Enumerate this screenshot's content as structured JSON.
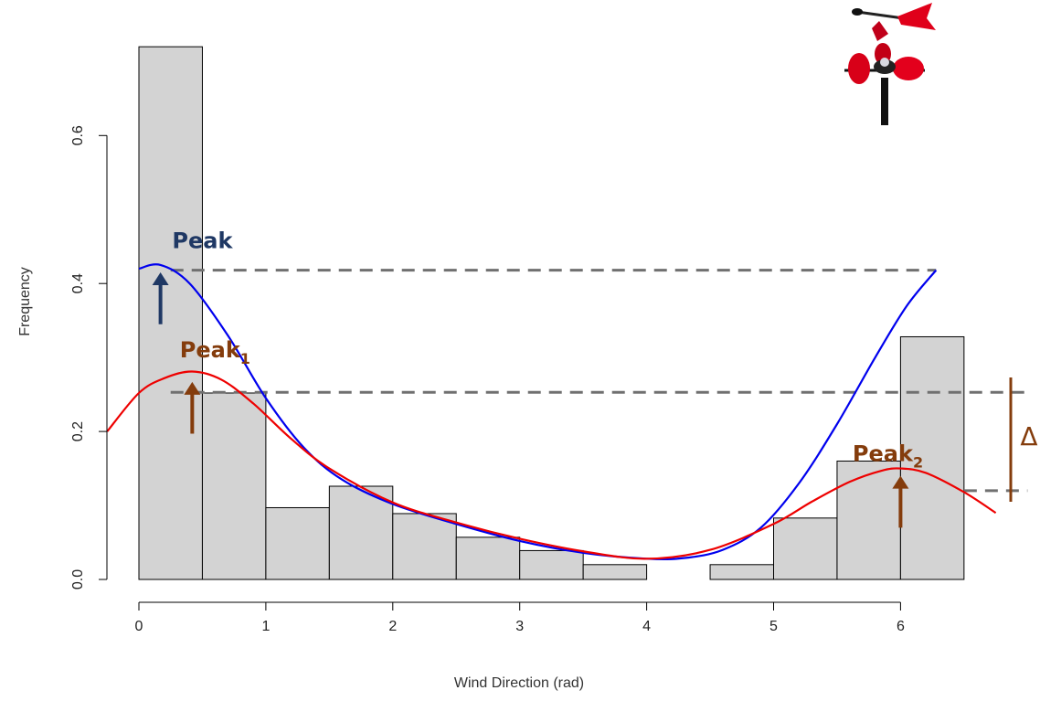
{
  "chart_data": {
    "type": "bar",
    "title": "",
    "xlabel": "Wind Direction (rad)",
    "ylabel": "Frequency",
    "xlim": [
      -0.25,
      7.0
    ],
    "ylim": [
      0,
      0.72
    ],
    "x_ticks": [
      0,
      1,
      2,
      3,
      4,
      5,
      6
    ],
    "x_tick_labels": [
      "0",
      "1",
      "2",
      "3",
      "4",
      "5",
      "6"
    ],
    "y_ticks": [
      0.0,
      0.2,
      0.4,
      0.6
    ],
    "y_tick_labels": [
      "0.0",
      "0.2",
      "0.4",
      "0.6"
    ],
    "grid": false,
    "histogram": {
      "bin_edges": [
        0,
        0.5,
        1.0,
        1.5,
        2.0,
        2.5,
        3.0,
        3.5,
        4.0,
        4.5,
        5.0,
        5.5,
        6.0,
        6.5
      ],
      "values": [
        0.72,
        0.252,
        0.097,
        0.126,
        0.089,
        0.057,
        0.039,
        0.02,
        0.0,
        0.02,
        0.083,
        0.16,
        0.328
      ],
      "color": "#d3d3d3"
    },
    "series": [
      {
        "type": "line",
        "color": "#0000ee",
        "x": [
          0,
          0.17,
          0.4,
          0.7,
          1.0,
          1.3,
          1.6,
          2.0,
          2.5,
          3.0,
          3.5,
          4.0,
          4.3,
          4.6,
          4.9,
          5.2,
          5.5,
          5.8,
          6.05,
          6.28
        ],
        "y": [
          0.42,
          0.425,
          0.4,
          0.33,
          0.245,
          0.178,
          0.135,
          0.102,
          0.075,
          0.052,
          0.036,
          0.028,
          0.029,
          0.04,
          0.07,
          0.13,
          0.21,
          0.3,
          0.37,
          0.418
        ]
      },
      {
        "type": "line",
        "color": "#ee0000",
        "x": [
          -0.25,
          0,
          0.2,
          0.42,
          0.65,
          0.9,
          1.2,
          1.5,
          2.0,
          2.5,
          3.0,
          3.5,
          4.0,
          4.5,
          5.0,
          5.3,
          5.6,
          5.85,
          6.0,
          6.2,
          6.5,
          6.75
        ],
        "y": [
          0.2,
          0.252,
          0.272,
          0.281,
          0.27,
          0.238,
          0.19,
          0.15,
          0.104,
          0.077,
          0.055,
          0.038,
          0.028,
          0.04,
          0.075,
          0.105,
          0.132,
          0.147,
          0.15,
          0.144,
          0.118,
          0.09
        ]
      }
    ],
    "reference_lines": [
      {
        "y": 0.418,
        "x_from": 0.25,
        "x_to": 6.28,
        "style": "dashed",
        "color": "#707070"
      },
      {
        "y": 0.253,
        "x_from": 0.25,
        "x_to": 7.0,
        "style": "dashed",
        "color": "#707070"
      },
      {
        "y": 0.12,
        "x_from": 6.5,
        "x_to": 7.0,
        "style": "dashed",
        "color": "#707070"
      }
    ],
    "annotations": [
      {
        "label": "Peak",
        "subscript": "",
        "color": "#1f3864",
        "text_x": 0.5,
        "text_y": 0.448,
        "arrow_x": 0.17,
        "arrow_from": 0.345,
        "arrow_to": 0.415
      },
      {
        "label": "Peak",
        "subscript": "1",
        "color": "#843c0c",
        "text_x": 0.6,
        "text_y": 0.3,
        "arrow_x": 0.42,
        "arrow_from": 0.197,
        "arrow_to": 0.267
      },
      {
        "label": "Peak",
        "subscript": "2",
        "color": "#843c0c",
        "text_x": 5.9,
        "text_y": 0.16,
        "arrow_x": 6.0,
        "arrow_from": 0.07,
        "arrow_to": 0.14
      }
    ],
    "delta": {
      "label": "Δ",
      "y_from": 0.105,
      "y_to": 0.273,
      "color": "#843c0c"
    }
  }
}
